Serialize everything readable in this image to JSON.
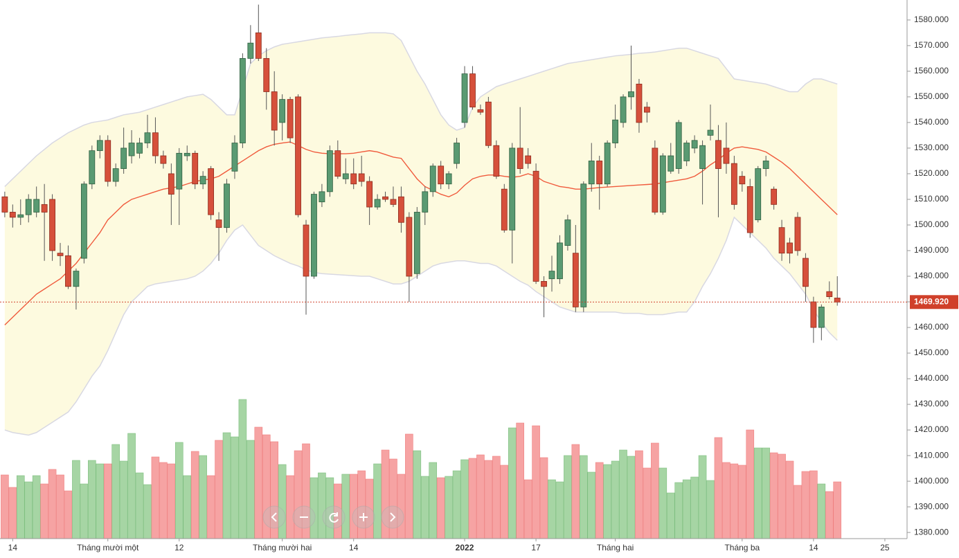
{
  "chart_data": {
    "type": "candlestick",
    "ohlc": [
      [
        1511,
        1513,
        1503,
        1505
      ],
      [
        1505,
        1508,
        1499,
        1503
      ],
      [
        1503,
        1510,
        1500,
        1504
      ],
      [
        1504,
        1512,
        1501,
        1510
      ],
      [
        1505,
        1515,
        1503,
        1510
      ],
      [
        1508,
        1516,
        1486,
        1505
      ],
      [
        1510,
        1512,
        1486,
        1490
      ],
      [
        1489,
        1493,
        1484,
        1488
      ],
      [
        1488,
        1492,
        1475,
        1476
      ],
      [
        1476,
        1483,
        1467,
        1482
      ],
      [
        1487,
        1517,
        1485,
        1516
      ],
      [
        1516,
        1531,
        1514,
        1529
      ],
      [
        1529,
        1535,
        1526,
        1533
      ],
      [
        1533,
        1535,
        1515,
        1517
      ],
      [
        1517,
        1524,
        1515,
        1522
      ],
      [
        1522,
        1538,
        1520,
        1530
      ],
      [
        1527,
        1537,
        1524,
        1532
      ],
      [
        1528,
        1534,
        1526,
        1532
      ],
      [
        1532,
        1543,
        1530,
        1536
      ],
      [
        1536,
        1542,
        1524,
        1527
      ],
      [
        1527,
        1529,
        1522,
        1524
      ],
      [
        1520,
        1524,
        1500,
        1512
      ],
      [
        1514,
        1530,
        1500,
        1528
      ],
      [
        1527,
        1531,
        1525,
        1528
      ],
      [
        1528,
        1529,
        1514,
        1516
      ],
      [
        1516,
        1521,
        1514,
        1519
      ],
      [
        1522,
        1523,
        1502,
        1504
      ],
      [
        1502,
        1505,
        1486,
        1499
      ],
      [
        1499,
        1518,
        1497,
        1516
      ],
      [
        1521,
        1535,
        1518,
        1532
      ],
      [
        1532,
        1567,
        1530,
        1565
      ],
      [
        1565,
        1578,
        1563,
        1571
      ],
      [
        1575,
        1586,
        1564,
        1565
      ],
      [
        1565,
        1569,
        1545,
        1552
      ],
      [
        1552,
        1560,
        1531,
        1537
      ],
      [
        1540,
        1551,
        1533,
        1549
      ],
      [
        1549,
        1550,
        1532,
        1534
      ],
      [
        1550,
        1551,
        1503,
        1504
      ],
      [
        1500,
        1502,
        1465,
        1480
      ],
      [
        1480,
        1513,
        1479,
        1512
      ],
      [
        1509,
        1516,
        1507,
        1513
      ],
      [
        1513,
        1531,
        1511,
        1529
      ],
      [
        1529,
        1533,
        1518,
        1519
      ],
      [
        1518,
        1526,
        1516,
        1520
      ],
      [
        1520,
        1526,
        1514,
        1516
      ],
      [
        1520,
        1527,
        1515,
        1517
      ],
      [
        1517,
        1519,
        1500,
        1507
      ],
      [
        1507,
        1512,
        1506,
        1510
      ],
      [
        1511,
        1513,
        1509,
        1510
      ],
      [
        1510,
        1515,
        1507,
        1508
      ],
      [
        1511,
        1515,
        1497,
        1501
      ],
      [
        1503,
        1505,
        1470,
        1480
      ],
      [
        1481,
        1507,
        1479,
        1505
      ],
      [
        1505,
        1515,
        1500,
        1513
      ],
      [
        1513,
        1524,
        1511,
        1523
      ],
      [
        1523,
        1525,
        1514,
        1516
      ],
      [
        1516,
        1521,
        1514,
        1520
      ],
      [
        1524,
        1534,
        1522,
        1532
      ],
      [
        1540,
        1562,
        1538,
        1559
      ],
      [
        1559,
        1562,
        1545,
        1546
      ],
      [
        1545,
        1547,
        1543,
        1544
      ],
      [
        1548,
        1550,
        1530,
        1531
      ],
      [
        1531,
        1533,
        1518,
        1519
      ],
      [
        1514,
        1516,
        1497,
        1498
      ],
      [
        1498,
        1532,
        1485,
        1530
      ],
      [
        1530,
        1546,
        1520,
        1522
      ],
      [
        1527,
        1530,
        1522,
        1524
      ],
      [
        1521,
        1524,
        1477,
        1478
      ],
      [
        1478,
        1480,
        1464,
        1476
      ],
      [
        1479,
        1488,
        1474,
        1482
      ],
      [
        1479,
        1496,
        1477,
        1493
      ],
      [
        1492,
        1504,
        1490,
        1502
      ],
      [
        1489,
        1500,
        1466,
        1468
      ],
      [
        1468,
        1517,
        1466,
        1516
      ],
      [
        1516,
        1532,
        1513,
        1525
      ],
      [
        1525,
        1527,
        1506,
        1516
      ],
      [
        1516,
        1533,
        1515,
        1532
      ],
      [
        1532,
        1547,
        1530,
        1541
      ],
      [
        1540,
        1551,
        1538,
        1550
      ],
      [
        1550,
        1570,
        1545,
        1552
      ],
      [
        1555,
        1557,
        1536,
        1540
      ],
      [
        1546,
        1548,
        1540,
        1544
      ],
      [
        1530,
        1533,
        1504,
        1505
      ],
      [
        1505,
        1528,
        1504,
        1527
      ],
      [
        1521,
        1532,
        1520,
        1527
      ],
      [
        1522,
        1541,
        1520,
        1540
      ],
      [
        1525,
        1533,
        1523,
        1532
      ],
      [
        1530,
        1535,
        1528,
        1533
      ],
      [
        1522,
        1533,
        1508,
        1531
      ],
      [
        1535,
        1547,
        1533,
        1537
      ],
      [
        1533,
        1539,
        1503,
        1522
      ],
      [
        1530,
        1540,
        1520,
        1524
      ],
      [
        1524,
        1527,
        1506,
        1508
      ],
      [
        1519,
        1521,
        1513,
        1516
      ],
      [
        1515,
        1518,
        1495,
        1497
      ],
      [
        1502,
        1523,
        1501,
        1522
      ],
      [
        1522,
        1527,
        1519,
        1525
      ],
      [
        1514,
        1515,
        1506,
        1508
      ],
      [
        1499,
        1502,
        1486,
        1489
      ],
      [
        1493,
        1495,
        1485,
        1489
      ],
      [
        1503,
        1505,
        1488,
        1490
      ],
      [
        1487,
        1489,
        1470,
        1476
      ],
      [
        1470,
        1472,
        1454,
        1460
      ],
      [
        1460,
        1469,
        1455,
        1468
      ],
      [
        1474,
        1478,
        1471,
        1472
      ],
      [
        1471.5,
        1480,
        1468.5,
        1469.92
      ]
    ],
    "volume": [
      92,
      74,
      91,
      82,
      91,
      79,
      100,
      92,
      69,
      113,
      79,
      113,
      108,
      108,
      136,
      112,
      152,
      95,
      78,
      118,
      110,
      108,
      139,
      91,
      126,
      120,
      91,
      142,
      153,
      147,
      201,
      142,
      161,
      150,
      140,
      107,
      91,
      127,
      137,
      88,
      95,
      88,
      79,
      93,
      93,
      98,
      86,
      108,
      128,
      115,
      93,
      151,
      127,
      90,
      110,
      88,
      90,
      98,
      114,
      116,
      121,
      113,
      119,
      106,
      160,
      167,
      85,
      163,
      117,
      85,
      82,
      120,
      136,
      120,
      96,
      110,
      107,
      112,
      128,
      119,
      127,
      102,
      138,
      102,
      66,
      81,
      85,
      89,
      120,
      84,
      146,
      110,
      108,
      106,
      157,
      131,
      131,
      124,
      122,
      112,
      77,
      97,
      98,
      79,
      68,
      82
    ],
    "bands": {
      "upper": [
        1515,
        1518,
        1521,
        1524,
        1527,
        1529.5,
        1532,
        1534,
        1536,
        1537.5,
        1539,
        1540,
        1540.5,
        1541,
        1542,
        1543,
        1543.5,
        1544,
        1545,
        1546,
        1547,
        1548,
        1549,
        1550,
        1550.5,
        1551,
        1549,
        1546,
        1543,
        1543,
        1553,
        1563,
        1566,
        1568,
        1569.5,
        1570.5,
        1571,
        1571.5,
        1572,
        1572.5,
        1573,
        1573.3,
        1573.6,
        1574,
        1574.3,
        1574.6,
        1575,
        1575,
        1575,
        1574.6,
        1572,
        1566,
        1560,
        1555,
        1549,
        1543,
        1539,
        1537,
        1538,
        1546,
        1550,
        1552,
        1554,
        1555,
        1556,
        1557,
        1558,
        1559,
        1560,
        1561,
        1562,
        1563,
        1563.5,
        1564,
        1564.5,
        1565,
        1565.5,
        1566,
        1566.3,
        1566.6,
        1567,
        1567.2,
        1567.5,
        1568,
        1568.5,
        1569,
        1569,
        1568,
        1567,
        1566,
        1565,
        1561,
        1557,
        1556.5,
        1556,
        1555.5,
        1555,
        1554,
        1553,
        1552,
        1552,
        1555,
        1557,
        1557,
        1556,
        1555
      ],
      "middle": [
        1461,
        1464,
        1467,
        1470,
        1473,
        1475,
        1477,
        1479,
        1482,
        1485,
        1489,
        1493,
        1497,
        1502,
        1505,
        1508,
        1510,
        1511,
        1512,
        1513,
        1514,
        1514.5,
        1515,
        1516,
        1517,
        1517.5,
        1518,
        1519,
        1521,
        1523,
        1525,
        1527,
        1529,
        1530.5,
        1531.5,
        1532,
        1532.4,
        1531,
        1529.5,
        1528.5,
        1528,
        1527.8,
        1527.8,
        1527.8,
        1528,
        1528.5,
        1529,
        1528.5,
        1527.5,
        1526.5,
        1526,
        1522,
        1518,
        1515,
        1513.5,
        1512,
        1511,
        1512.5,
        1515.5,
        1518,
        1519,
        1519.5,
        1519.5,
        1519,
        1518.6,
        1519,
        1520,
        1519,
        1517,
        1516,
        1515,
        1514.6,
        1514,
        1514,
        1514.3,
        1514.6,
        1514.8,
        1515,
        1515.2,
        1515.4,
        1515.6,
        1515.8,
        1516,
        1516.5,
        1517,
        1517.5,
        1518,
        1519,
        1521,
        1523.5,
        1525.5,
        1528,
        1530,
        1530.5,
        1530,
        1529.5,
        1528.5,
        1526.5,
        1524.5,
        1522,
        1519,
        1516,
        1513,
        1510,
        1507,
        1504
      ],
      "lower": [
        1420,
        1419,
        1418.5,
        1418,
        1419,
        1421,
        1423,
        1425,
        1427,
        1431,
        1436,
        1441,
        1445,
        1451,
        1458,
        1465,
        1470,
        1473,
        1476,
        1477,
        1477.5,
        1478,
        1478.5,
        1479,
        1480,
        1482,
        1485,
        1489,
        1494,
        1498,
        1500,
        1496,
        1492,
        1490,
        1488,
        1486.5,
        1485,
        1484,
        1482.5,
        1481.5,
        1481,
        1480.8,
        1480.6,
        1480.4,
        1480.2,
        1480,
        1480,
        1479,
        1478,
        1477,
        1477,
        1478,
        1480,
        1482,
        1484,
        1485,
        1485.5,
        1486,
        1486,
        1485.5,
        1485,
        1485,
        1484,
        1482,
        1480,
        1478,
        1476.5,
        1474,
        1472,
        1470,
        1468,
        1467,
        1466,
        1466,
        1466,
        1466,
        1466,
        1466,
        1465.5,
        1465.5,
        1465.5,
        1465,
        1465,
        1465,
        1465.5,
        1466,
        1466,
        1470,
        1476,
        1481,
        1487,
        1494,
        1503,
        1500,
        1497,
        1494,
        1491,
        1487,
        1484,
        1481,
        1477,
        1473,
        1467,
        1462,
        1458,
        1455
      ]
    },
    "last_close_label": "1469.920",
    "xlim": [
      -0.6,
      113.8
    ],
    "ylim": [
      1377.6,
      1587.8
    ],
    "volume_lim": [
      0,
      210
    ],
    "yticks": [
      {
        "value": 1380,
        "label": "1380.000"
      },
      {
        "value": 1390,
        "label": "1390.000"
      },
      {
        "value": 1400,
        "label": "1400.000"
      },
      {
        "value": 1410,
        "label": "1410.000"
      },
      {
        "value": 1420,
        "label": "1420.000"
      },
      {
        "value": 1430,
        "label": "1430.000"
      },
      {
        "value": 1440,
        "label": "1440.000"
      },
      {
        "value": 1450,
        "label": "1450.000"
      },
      {
        "value": 1460,
        "label": "1460.000"
      },
      {
        "value": 1470,
        "label": "1470.000"
      },
      {
        "value": 1480,
        "label": "1480.000"
      },
      {
        "value": 1490,
        "label": "1490.000"
      },
      {
        "value": 1500,
        "label": "1500.000"
      },
      {
        "value": 1510,
        "label": "1510.000"
      },
      {
        "value": 1520,
        "label": "1520.000"
      },
      {
        "value": 1530,
        "label": "1530.000"
      },
      {
        "value": 1540,
        "label": "1540.000"
      },
      {
        "value": 1550,
        "label": "1550.000"
      },
      {
        "value": 1560,
        "label": "1560.000"
      },
      {
        "value": 1570,
        "label": "1570.000"
      },
      {
        "value": 1580,
        "label": "1580.000"
      }
    ],
    "xticks": [
      {
        "value": 1,
        "label": "14"
      },
      {
        "value": 13,
        "label": "Tháng mười một"
      },
      {
        "value": 22,
        "label": "12"
      },
      {
        "value": 35,
        "label": "Tháng mười hai"
      },
      {
        "value": 44,
        "label": "14"
      },
      {
        "value": 58,
        "label": "2022"
      },
      {
        "value": 67,
        "label": "17"
      },
      {
        "value": 77,
        "label": "Tháng hai"
      },
      {
        "value": 93,
        "label": "Tháng ba"
      },
      {
        "value": 102,
        "label": "14"
      },
      {
        "value": 111,
        "label": "25"
      }
    ],
    "colors": {
      "up": "#5a9a72",
      "up_edge": "#2f5f40",
      "down": "#d6503b",
      "down_edge": "#8c2b1d",
      "wick": "#555555",
      "volume_up": "#a6d5a4",
      "volume_down": "#f6a3a3",
      "band_fill": "#fdfadf",
      "band_line": "#d8d8e2",
      "middle_line": "#f05a3c",
      "last_price": "#d0402a"
    }
  }
}
